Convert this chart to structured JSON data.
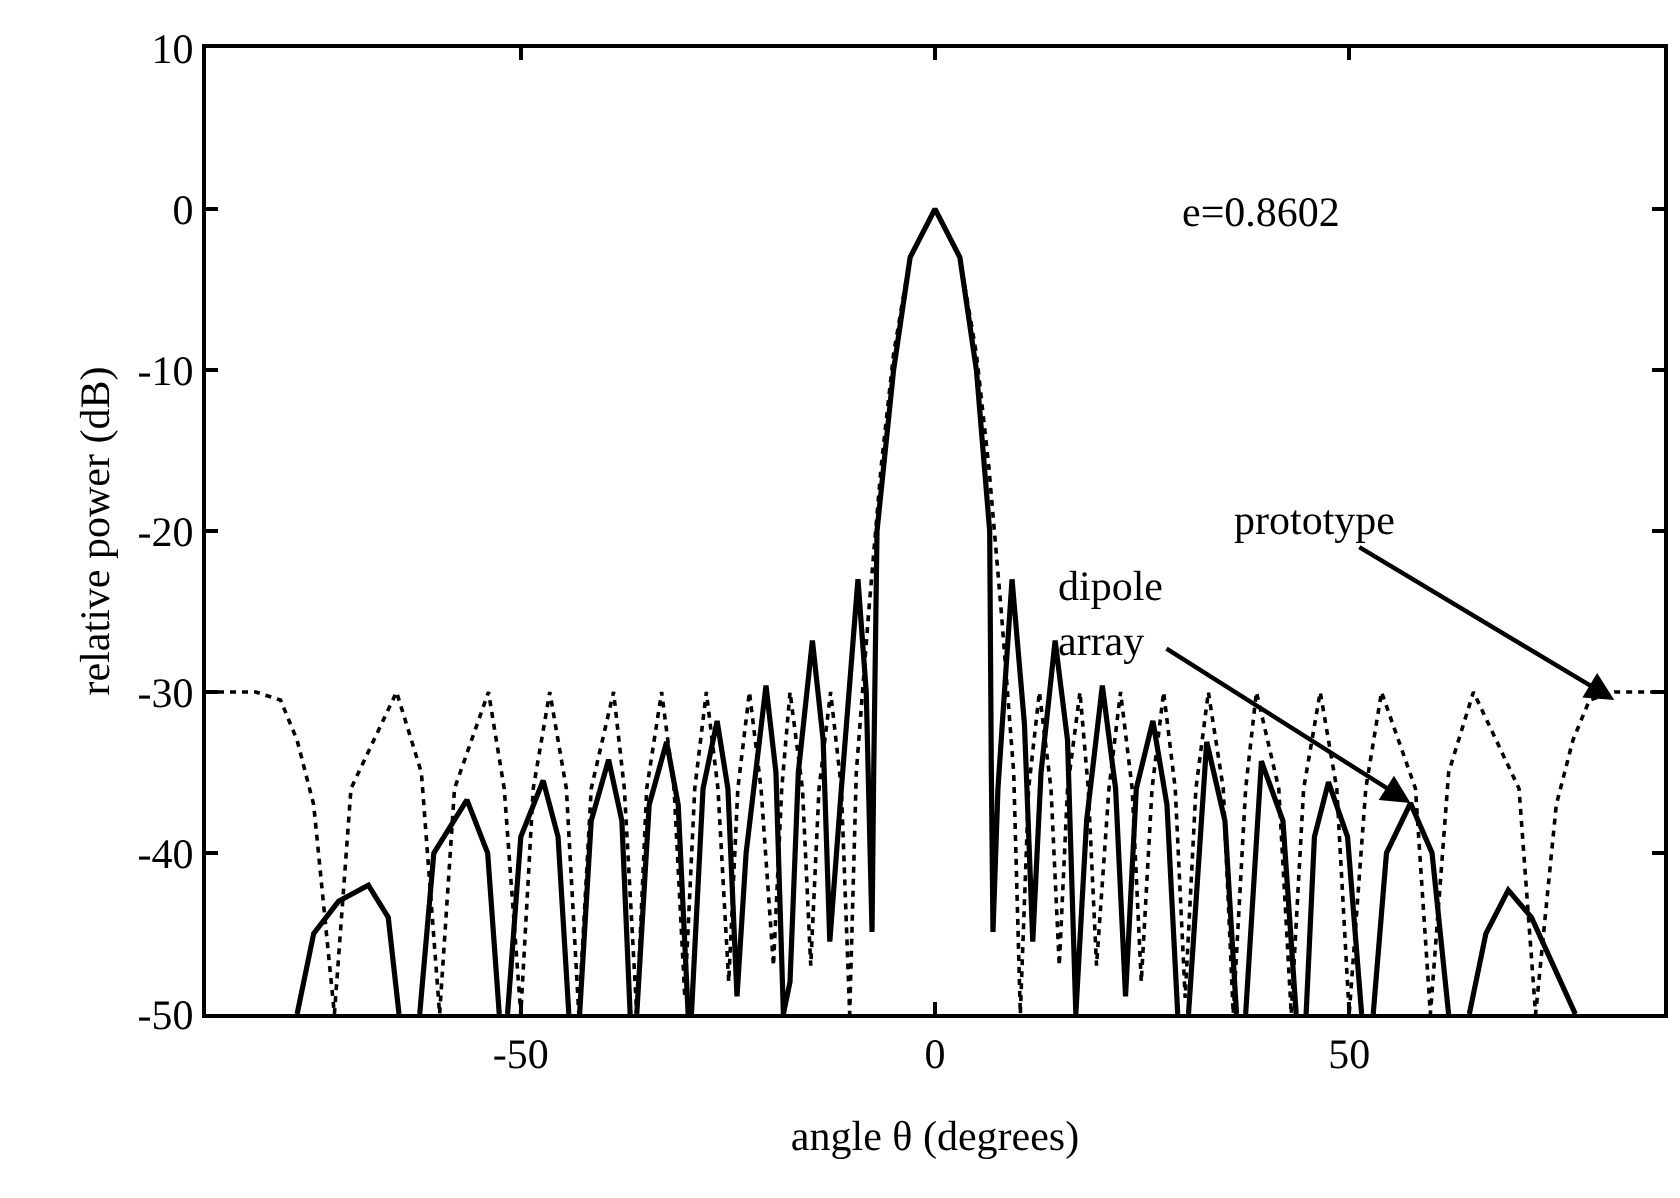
{
  "chart_data": {
    "type": "line",
    "xlabel": "angle θ (degrees)",
    "ylabel": "relative power (dB)",
    "xlim": [
      -88,
      88
    ],
    "xticks": [
      -50,
      0,
      50
    ],
    "ylim": [
      -50,
      10
    ],
    "yticks": [
      10,
      0,
      -10,
      -20,
      -30,
      -40,
      -50
    ],
    "marker": "none",
    "series": [
      {
        "color": "#000000",
        "line_style": "solid",
        "x": [
          -77,
          -75,
          -72,
          -68.4,
          -66,
          -64.7,
          -64,
          -62.2,
          -60.5,
          -56.5,
          -54,
          -52.6,
          -52,
          -51.6,
          -50,
          -47.3,
          -45.5,
          -44.2,
          -43.5,
          -42.9,
          -41.5,
          -39.4,
          -37.8,
          -36.8,
          -36.4,
          -36,
          -34.5,
          -32.4,
          -31,
          -29.8,
          -29.6,
          -29.4,
          -28,
          -26.3,
          -25,
          -23.9,
          -22.8,
          -20.4,
          -19.2,
          -18.3,
          -17.5,
          -16.5,
          -14.8,
          -13.5,
          -12.7,
          -11.3,
          -9.3,
          -8.3,
          -7.6,
          -7.4,
          -7,
          -5,
          -3,
          0,
          3,
          5,
          6.6,
          6.8,
          7,
          7.6,
          9.3,
          10.8,
          11.8,
          12.8,
          14.5,
          16,
          17,
          18.3,
          20.2,
          21.8,
          23,
          24.3,
          26.3,
          28,
          29.3,
          29.8,
          30.6,
          32.8,
          35,
          36.4,
          36.9,
          37.5,
          39.4,
          42,
          43.6,
          44.2,
          44.8,
          45.8,
          47.5,
          49.8,
          51.5,
          52.2,
          52.9,
          54.5,
          57.4,
          60,
          62,
          63.2,
          64.5,
          66.5,
          69.2,
          72,
          77.3
        ],
        "values": [
          -50,
          -45,
          -43,
          -42,
          -44,
          -50,
          null,
          -50,
          -40,
          -36.7,
          -40,
          -50,
          null,
          -50,
          -39,
          -35.5,
          -39,
          -50,
          null,
          -50,
          -38,
          -34.2,
          -38,
          -50,
          null,
          -50,
          -37,
          -33.1,
          -37,
          -50,
          null,
          -50,
          -36,
          -31.8,
          -36,
          -48.9,
          -40,
          -29.6,
          -35,
          -50,
          -48,
          -35,
          -26.8,
          -33,
          -45.5,
          -36,
          -23,
          -30,
          -44.9,
          -35,
          -20,
          -10,
          -3,
          0,
          -3,
          -10,
          -20,
          -35,
          -44.9,
          -36,
          -23,
          -32,
          -45.5,
          -35,
          -26.8,
          -33,
          -50,
          -38,
          -29.6,
          -36,
          -48.9,
          -36,
          -31.8,
          -37,
          -50,
          null,
          -50,
          -33.1,
          -38,
          -50,
          null,
          -50,
          -34.3,
          -38,
          -50,
          null,
          -50,
          -39,
          -35.6,
          -39,
          -50,
          null,
          -50,
          -40,
          -36.9,
          -40,
          -50,
          null,
          -50,
          -45,
          -42.3,
          -44,
          -50
        ]
      },
      {
        "color": "#000000",
        "line_style": "dotted",
        "x": [
          -88,
          -82,
          -79,
          -77,
          -75,
          -72.5,
          -70.5,
          -65,
          -62,
          -59.8,
          -58,
          -53.9,
          -52,
          -50,
          -48.5,
          -46.5,
          -44.5,
          -43,
          -41.5,
          -38.8,
          -37.5,
          -36,
          -34.8,
          -33,
          -31.5,
          -30.2,
          -29,
          -27.6,
          -26.2,
          -24.9,
          -23.8,
          -22.4,
          -21,
          -19.5,
          -18.5,
          -17.5,
          -16,
          -15,
          -14,
          -12.6,
          -11.3,
          -10.3,
          -9.5,
          -8,
          -6.5,
          -5,
          -3,
          0,
          3,
          5,
          6.5,
          8,
          9.5,
          10.3,
          11.3,
          12.6,
          14,
          15,
          16,
          17.5,
          18.5,
          19.5,
          21,
          22.4,
          23.8,
          24.9,
          26.2,
          27.6,
          29,
          30.2,
          31.5,
          33,
          34.8,
          36,
          37.5,
          38.8,
          41.5,
          43,
          44.5,
          46.5,
          48.5,
          50,
          52,
          53.9,
          58,
          59.8,
          62,
          65,
          70.5,
          72.5,
          75,
          77,
          79,
          82,
          88
        ],
        "values": [
          -30,
          -30,
          -30.5,
          -33,
          -37,
          -50,
          -36,
          -30,
          -35,
          -50,
          -36,
          -30,
          -36,
          -50,
          -36,
          -30,
          -36,
          -50,
          -36,
          -30,
          -36,
          -50,
          -36,
          -30,
          -36,
          -49,
          -36,
          -30,
          -36,
          -48,
          -36,
          -30,
          -36,
          -47,
          -36,
          -30,
          -36,
          -47,
          -36,
          -30,
          -36,
          -50,
          -35,
          -25,
          -16,
          -9,
          -3,
          0,
          -3,
          -9,
          -16,
          -25,
          -35,
          -50,
          -36,
          -30,
          -36,
          -47,
          -36,
          -30,
          -36,
          -47,
          -36,
          -30,
          -36,
          -48,
          -36,
          -30,
          -36,
          -49,
          -36,
          -30,
          -36,
          -50,
          -36,
          -30,
          -36,
          -50,
          -36,
          -30,
          -36,
          -50,
          -36,
          -30,
          -36,
          -50,
          -35,
          -30,
          -36,
          -50,
          -37,
          -33,
          -30.5,
          -30,
          -30
        ]
      }
    ],
    "annotations": [
      "e=0.8602",
      {
        "text": "dipole\narray",
        "x": 57.4,
        "y": -36.9
      },
      {
        "text": "prototype",
        "x": 82,
        "y": -30.5
      }
    ]
  }
}
